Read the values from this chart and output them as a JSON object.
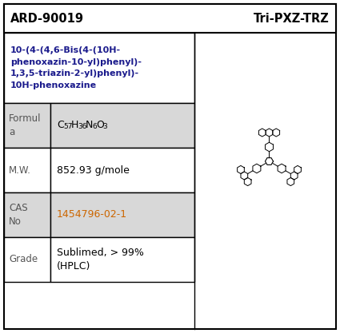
{
  "header_left": "ARD-90019",
  "header_right": "Tri-PXZ-TRZ",
  "iupac_name": "10-(4-(4,6-Bis(4-(10H-\nphenoxazin-10-yl)phenyl)-\n1,3,5-triazin-2-yl)phenyl)-\n10H-phenoxazine",
  "formula_label": "Formul\na",
  "formula_plain": "C57H36N6O3",
  "mw_label": "M.W.",
  "mw_value": "852.93 g/mole",
  "cas_label": "CAS\nNo",
  "cas_value": "1454796-02-1",
  "grade_label": "Grade",
  "grade_value": "Sublimed, > 99%\n(HPLC)",
  "bg_color": "#ffffff",
  "header_bg": "#ffffff",
  "row_shaded": "#d8d8d8",
  "row_white": "#ffffff",
  "border_color": "#000000",
  "header_text_color": "#000000",
  "iupac_color": "#1a1a8c",
  "cas_color": "#cc6600",
  "label_color": "#555555",
  "value_color": "#000000",
  "fig_w": 4.25,
  "fig_h": 4.17,
  "dpi": 100
}
